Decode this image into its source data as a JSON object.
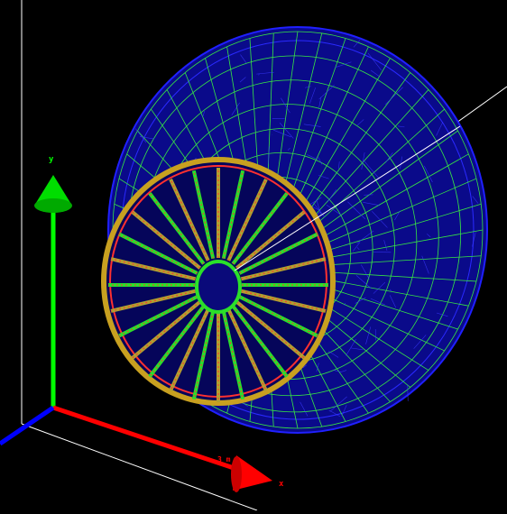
{
  "viewer": {
    "background": "#000000",
    "axes": {
      "x": {
        "label": "x",
        "color": "#ff0000"
      },
      "y": {
        "label": "y",
        "color": "#00ff00"
      },
      "z": {
        "color": "#0000ff"
      },
      "scale_label": "3 m"
    },
    "wireframe": {
      "outer_color": "#1a1aff",
      "mesh_color": "#3cff3c",
      "wheel_color": "#ff3030",
      "bounding_box_color": "#ffffff"
    }
  }
}
